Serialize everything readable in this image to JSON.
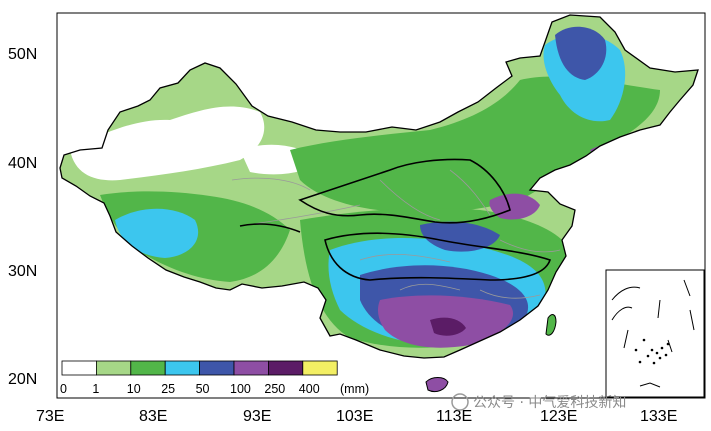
{
  "map": {
    "lat_labels": [
      "50N",
      "40N",
      "30N",
      "20N"
    ],
    "lon_labels": [
      "73E",
      "83E",
      "93E",
      "103E",
      "113E",
      "123E",
      "133E"
    ],
    "colors": {
      "white": "#ffffff",
      "light_green": "#a6d787",
      "green": "#52b649",
      "cyan": "#3cc6ee",
      "blue": "#3e56a9",
      "purple": "#8e4ea4",
      "dark_purple": "#5b1c66",
      "yellow": "#f3ef64",
      "boundary": "#000000",
      "province": "#9a9a9a"
    }
  },
  "legend": {
    "ticks": [
      "0",
      "1",
      "10",
      "25",
      "50",
      "100",
      "250",
      "400"
    ],
    "unit": "(mm)",
    "colors": [
      "#ffffff",
      "#a6d787",
      "#52b649",
      "#3cc6ee",
      "#3e56a9",
      "#8e4ea4",
      "#5b1c66",
      "#f3ef64"
    ]
  },
  "watermark": {
    "text": "公众号 · 中气爱科技新知"
  }
}
